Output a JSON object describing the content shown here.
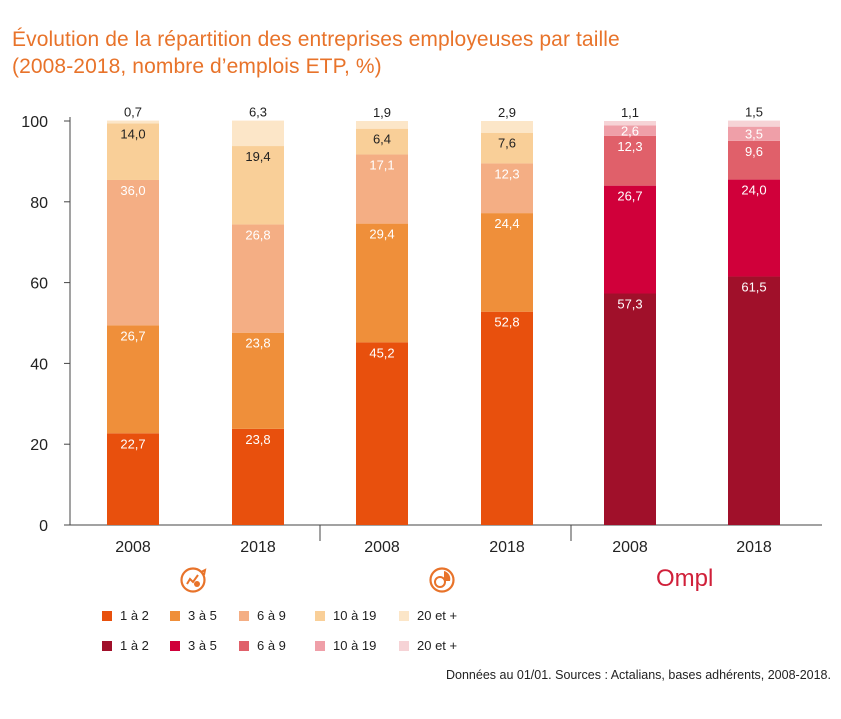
{
  "title": {
    "line1": "Évolution de la répartition des entreprises employeuses par taille",
    "line2": "(2008-2018, nombre d’emplois ETP, %)"
  },
  "chart_data": {
    "type": "bar",
    "stacked": true,
    "ylim": [
      0,
      100
    ],
    "yticks": [
      "0",
      "20",
      "40",
      "60",
      "80",
      "100"
    ],
    "categories": [
      "2008",
      "2018",
      "2008",
      "2018",
      "2008",
      "2018"
    ],
    "groups": [
      {
        "icon": "chart-gear-icon",
        "colors": [
          "#e8500d",
          "#ef8f3a",
          "#f4ae84",
          "#f9cf98",
          "#fce6c8"
        ],
        "bars": [
          {
            "year": "2008",
            "values": [
              22.7,
              26.7,
              36.0,
              14.0,
              0.7
            ],
            "labels": [
              "22,7",
              "26,7",
              "36,0",
              "14,0",
              "0,7"
            ]
          },
          {
            "year": "2018",
            "values": [
              23.8,
              23.8,
              26.8,
              19.4,
              6.3
            ],
            "labels": [
              "23,8",
              "23,8",
              "26,8",
              "19,4",
              "6,3"
            ]
          }
        ]
      },
      {
        "icon": "pie-chart-icon",
        "colors": [
          "#e8500d",
          "#ef8f3a",
          "#f4ae84",
          "#f9cf98",
          "#fce6c8"
        ],
        "bars": [
          {
            "year": "2008",
            "values": [
              45.2,
              29.4,
              17.1,
              6.4,
              1.9
            ],
            "labels": [
              "45,2",
              "29,4",
              "17,1",
              "6,4",
              "1,9"
            ]
          },
          {
            "year": "2018",
            "values": [
              52.8,
              24.4,
              12.3,
              7.6,
              2.9
            ],
            "labels": [
              "52,8",
              "24,4",
              "12,3",
              "7,6",
              "2,9"
            ]
          }
        ]
      },
      {
        "icon": "ompl-logo",
        "colors": [
          "#a0102a",
          "#d0003a",
          "#e0606a",
          "#ef9fa8",
          "#f6d3d6"
        ],
        "bars": [
          {
            "year": "2008",
            "values": [
              57.3,
              26.7,
              12.3,
              2.6,
              1.1
            ],
            "labels": [
              "57,3",
              "26,7",
              "12,3",
              "2,6",
              "1,1"
            ]
          },
          {
            "year": "2018",
            "values": [
              61.5,
              24.0,
              9.6,
              3.5,
              1.5
            ],
            "labels": [
              "61,5",
              "24,0",
              "9,6",
              "3,5",
              "1,5"
            ]
          }
        ]
      }
    ],
    "series_names": [
      "1 à 2",
      "3 à 5",
      "6 à 9",
      "10 à 19",
      "20 et +"
    ]
  },
  "logo_text": "Ompl",
  "legend_rows": [
    {
      "colors": [
        "#e8500d",
        "#ef8f3a",
        "#f4ae84",
        "#f9cf98",
        "#fce6c8"
      ],
      "labels": [
        "1 à 2",
        "3 à 5",
        "6 à 9",
        "10 à 19",
        "20 et +"
      ]
    },
    {
      "colors": [
        "#a0102a",
        "#d0003a",
        "#e0606a",
        "#ef9fa8",
        "#f6d3d6"
      ],
      "labels": [
        "1 à 2",
        "3 à 5",
        "6 à 9",
        "10 à 19",
        "20 et +"
      ]
    }
  ],
  "source": "Données au 01/01. Sources : Actalians, bases adhérents, 2008-2018."
}
